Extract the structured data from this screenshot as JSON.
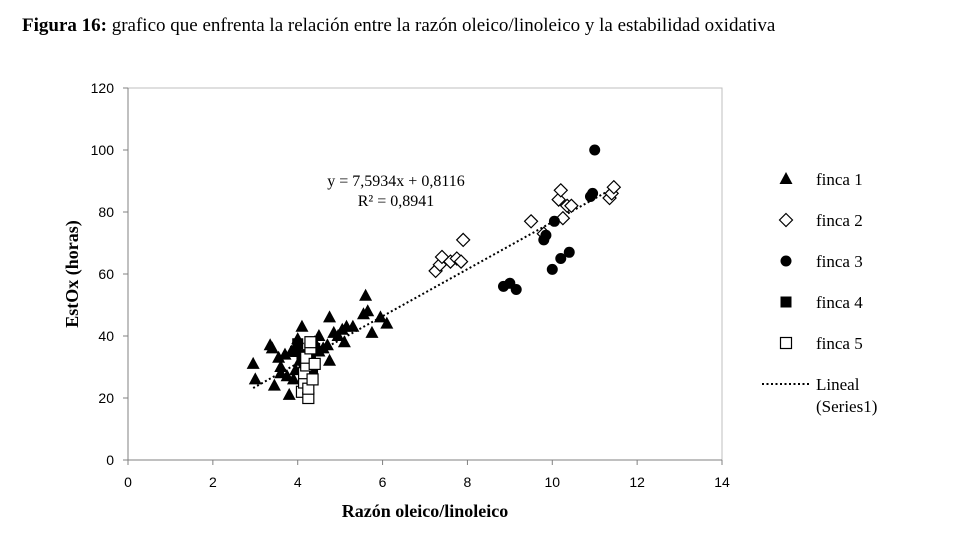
{
  "caption": {
    "bold": "Figura 16:",
    "text": " grafico que enfrenta la relación entre la razón oleico/linoleico y la estabilidad oxidativa"
  },
  "chart_data": {
    "type": "scatter",
    "xlabel": "Razón oleico/linoleico",
    "ylabel": "EstOx (horas)",
    "xlim": [
      0,
      14
    ],
    "ylim": [
      0,
      120
    ],
    "xticks": [
      "0",
      "2",
      "4",
      "6",
      "8",
      "10",
      "12",
      "14"
    ],
    "yticks": [
      "0",
      "20",
      "40",
      "60",
      "80",
      "100",
      "120"
    ],
    "grid": false,
    "legend_position": "right",
    "series": [
      {
        "name": "finca 1",
        "marker": "triangle-filled",
        "points": [
          [
            2.95,
            31
          ],
          [
            3.0,
            26
          ],
          [
            3.35,
            37
          ],
          [
            3.45,
            24
          ],
          [
            3.4,
            36
          ],
          [
            3.55,
            33
          ],
          [
            3.6,
            30
          ],
          [
            3.6,
            28
          ],
          [
            3.7,
            34
          ],
          [
            3.75,
            27
          ],
          [
            3.8,
            21
          ],
          [
            3.85,
            35
          ],
          [
            3.9,
            26
          ],
          [
            3.95,
            29
          ],
          [
            4.0,
            39
          ],
          [
            4.05,
            32
          ],
          [
            4.1,
            43
          ],
          [
            4.25,
            33
          ],
          [
            4.4,
            38
          ],
          [
            4.5,
            40
          ],
          [
            4.5,
            35
          ],
          [
            4.6,
            36
          ],
          [
            4.7,
            37
          ],
          [
            4.75,
            32
          ],
          [
            4.75,
            46
          ],
          [
            4.85,
            41
          ],
          [
            4.95,
            40
          ],
          [
            5.05,
            42
          ],
          [
            5.1,
            38
          ],
          [
            5.15,
            43
          ],
          [
            5.3,
            43
          ],
          [
            5.55,
            47
          ],
          [
            5.6,
            53
          ],
          [
            5.65,
            48
          ],
          [
            5.75,
            41
          ],
          [
            5.95,
            46
          ],
          [
            6.1,
            44
          ]
        ]
      },
      {
        "name": "finca 2",
        "marker": "diamond-open",
        "points": [
          [
            7.25,
            61
          ],
          [
            7.35,
            63
          ],
          [
            7.4,
            65.5
          ],
          [
            7.6,
            64
          ],
          [
            7.75,
            65
          ],
          [
            7.85,
            64
          ],
          [
            7.9,
            71
          ],
          [
            9.5,
            77
          ],
          [
            9.8,
            73
          ],
          [
            10.15,
            84
          ],
          [
            10.2,
            87
          ],
          [
            10.25,
            78
          ],
          [
            10.35,
            82
          ],
          [
            10.45,
            82
          ],
          [
            11.35,
            84.5
          ],
          [
            11.4,
            86
          ],
          [
            11.45,
            88
          ]
        ]
      },
      {
        "name": "finca 3",
        "marker": "circle-filled",
        "points": [
          [
            8.85,
            56
          ],
          [
            9.0,
            57
          ],
          [
            9.15,
            55
          ],
          [
            9.8,
            71
          ],
          [
            9.85,
            72.5
          ],
          [
            10.0,
            61.5
          ],
          [
            10.05,
            77
          ],
          [
            10.2,
            65
          ],
          [
            10.4,
            67
          ],
          [
            10.9,
            85
          ],
          [
            10.95,
            86
          ],
          [
            11.0,
            100
          ]
        ]
      },
      {
        "name": "finca 4",
        "marker": "square-filled",
        "points": [
          [
            3.95,
            35
          ],
          [
            4.0,
            37.5
          ],
          [
            4.1,
            34
          ],
          [
            4.15,
            31
          ],
          [
            4.2,
            27
          ],
          [
            4.25,
            24
          ],
          [
            4.3,
            33
          ],
          [
            4.35,
            29
          ],
          [
            4.4,
            36
          ]
        ]
      },
      {
        "name": "finca 5",
        "marker": "square-open",
        "points": [
          [
            4.1,
            22
          ],
          [
            4.15,
            25
          ],
          [
            4.15,
            28
          ],
          [
            4.2,
            30.5
          ],
          [
            4.2,
            33
          ],
          [
            4.25,
            20
          ],
          [
            4.25,
            23
          ],
          [
            4.3,
            36
          ],
          [
            4.3,
            38
          ],
          [
            4.35,
            26
          ],
          [
            4.4,
            31
          ]
        ]
      }
    ],
    "trendline": {
      "name": "Lineal (Series1)",
      "legend_lines": [
        "Lineal",
        "(Series1)"
      ],
      "style": "dotted",
      "slope": 7.5934,
      "intercept": 0.8116,
      "x_range": [
        2.95,
        11.4
      ],
      "equation": "y = 7,5934x + 0,8116",
      "r2": "R² = 0,8941"
    }
  }
}
